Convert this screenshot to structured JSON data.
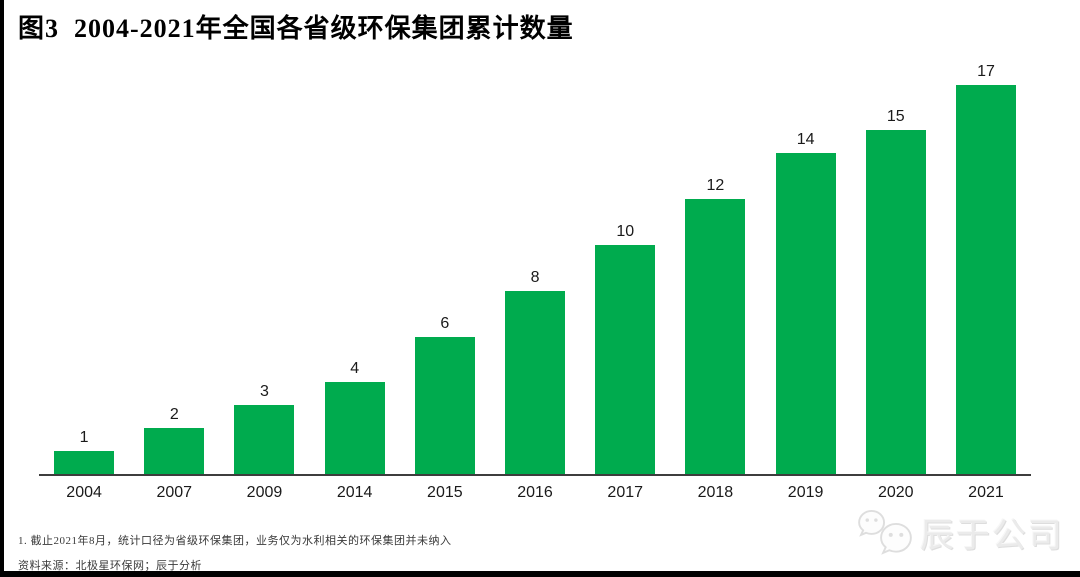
{
  "title": "图3  2004-2021年全国各省级环保集团累计数量",
  "chart_data": {
    "type": "bar",
    "categories": [
      "2004",
      "2007",
      "2009",
      "2014",
      "2015",
      "2016",
      "2017",
      "2018",
      "2019",
      "2020",
      "2021"
    ],
    "values": [
      1,
      2,
      3,
      4,
      6,
      8,
      10,
      12,
      14,
      15,
      17
    ],
    "title": "图3  2004-2021年全国各省级环保集团累计数量",
    "xlabel": "",
    "ylabel": "",
    "ylim": [
      0,
      17
    ],
    "grid": false,
    "legend": "none",
    "data_labels": true,
    "bar_color": "#00AB4E",
    "axis_color": "#3d3d3d"
  },
  "footnotes": {
    "note1": "1. 截止2021年8月，统计口径为省级环保集团，业务仅为水利相关的环保集团并未纳入",
    "source": "资料来源：北极星环保网；辰于分析"
  },
  "watermark": {
    "icon": "wechat-icon",
    "text": "辰于公司"
  }
}
